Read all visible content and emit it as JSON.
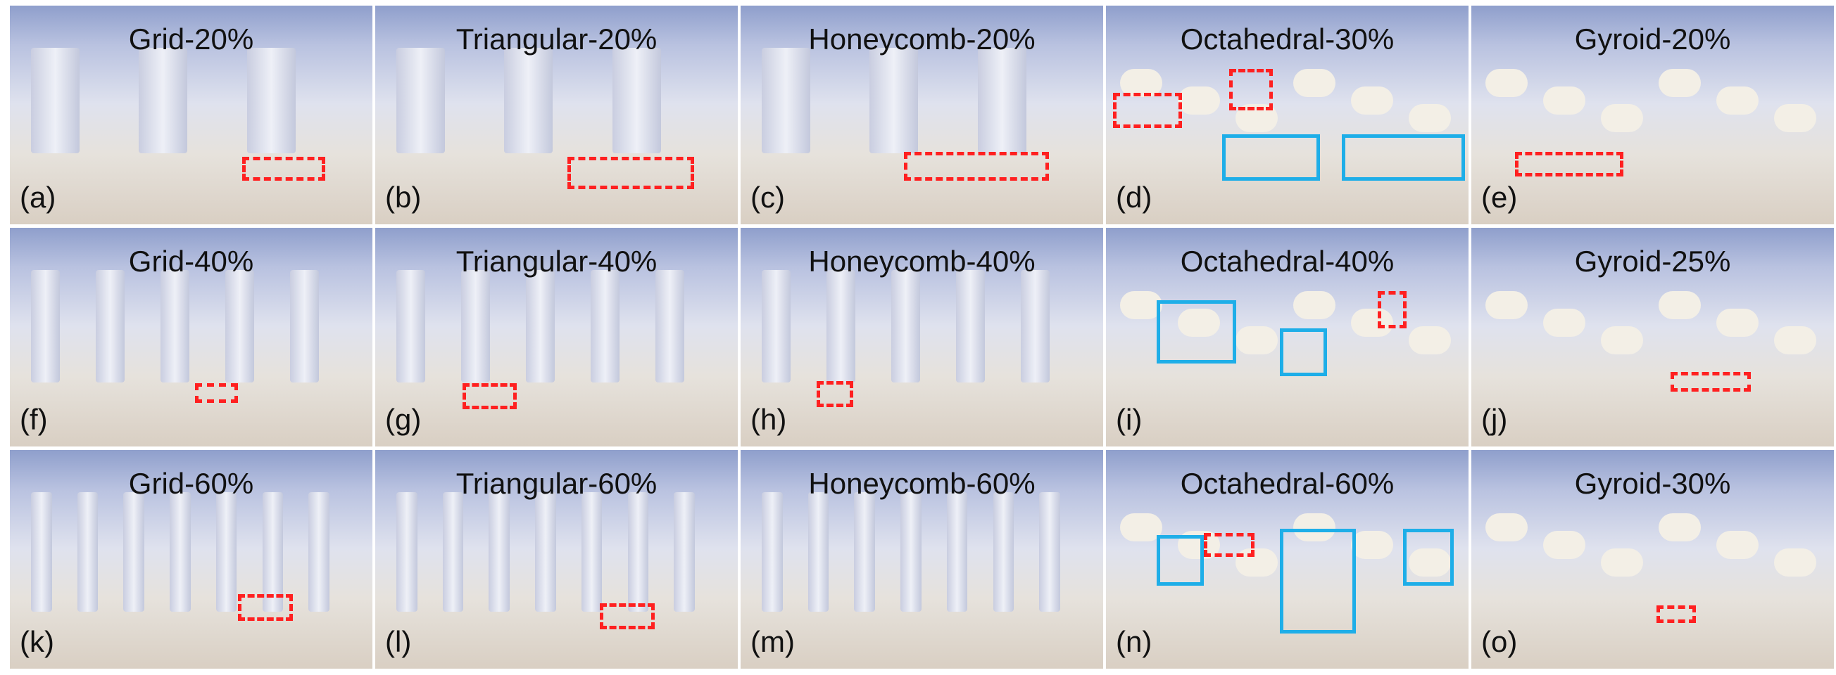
{
  "panels": [
    {
      "title": "Grid-20%",
      "label": "(a)"
    },
    {
      "title": "Triangular-20%",
      "label": "(b)"
    },
    {
      "title": "Honeycomb-20%",
      "label": "(c)"
    },
    {
      "title": "Octahedral-30%",
      "label": "(d)"
    },
    {
      "title": "Gyroid-20%",
      "label": "(e)"
    },
    {
      "title": "Grid-40%",
      "label": "(f)"
    },
    {
      "title": "Triangular-40%",
      "label": "(g)"
    },
    {
      "title": "Honeycomb-40%",
      "label": "(h)"
    },
    {
      "title": "Octahedral-40%",
      "label": "(i)"
    },
    {
      "title": "Gyroid-25%",
      "label": "(j)"
    },
    {
      "title": "Grid-60%",
      "label": "(k)"
    },
    {
      "title": "Triangular-60%",
      "label": "(l)"
    },
    {
      "title": "Honeycomb-60%",
      "label": "(m)"
    },
    {
      "title": "Octahedral-60%",
      "label": "(n)"
    },
    {
      "title": "Gyroid-30%",
      "label": "(o)"
    }
  ]
}
